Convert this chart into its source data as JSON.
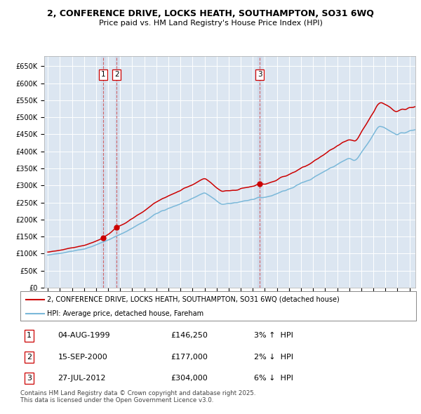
{
  "title_line1": "2, CONFERENCE DRIVE, LOCKS HEATH, SOUTHAMPTON, SO31 6WQ",
  "title_line2": "Price paid vs. HM Land Registry's House Price Index (HPI)",
  "background_color": "#dce6f1",
  "plot_background": "#dce6f1",
  "grid_color": "#ffffff",
  "hpi_color": "#7ab8d9",
  "price_color": "#cc0000",
  "transactions": [
    {
      "num": 1,
      "date": "04-AUG-1999",
      "price": 146250,
      "pct": "3%",
      "dir": "↑"
    },
    {
      "num": 2,
      "date": "15-SEP-2000",
      "price": 177000,
      "pct": "2%",
      "dir": "↓"
    },
    {
      "num": 3,
      "date": "27-JUL-2012",
      "price": 304000,
      "pct": "6%",
      "dir": "↓"
    }
  ],
  "transaction_dates_decimal": [
    1999.59,
    2000.71,
    2012.57
  ],
  "transaction_prices": [
    146250,
    177000,
    304000
  ],
  "legend_entries": [
    "2, CONFERENCE DRIVE, LOCKS HEATH, SOUTHAMPTON, SO31 6WQ (detached house)",
    "HPI: Average price, detached house, Fareham"
  ],
  "footnote": "Contains HM Land Registry data © Crown copyright and database right 2025.\nThis data is licensed under the Open Government Licence v3.0.",
  "ylim": [
    0,
    680000
  ],
  "yticks": [
    0,
    50000,
    100000,
    150000,
    200000,
    250000,
    300000,
    350000,
    400000,
    450000,
    500000,
    550000,
    600000,
    650000
  ],
  "xlim_start": 1994.7,
  "xlim_end": 2025.5
}
